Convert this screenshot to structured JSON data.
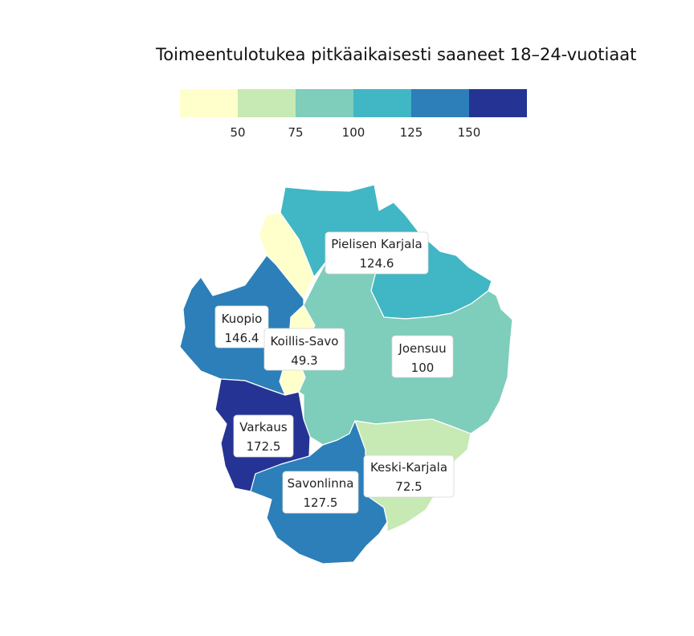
{
  "title": "Toimeentulotukea pitkäaikaisesti saaneet 18–24-vuotiaat",
  "legend": {
    "bins": [
      {
        "color": "#ffffcc"
      },
      {
        "color": "#c7e9b4"
      },
      {
        "color": "#7fcdbb"
      },
      {
        "color": "#41b6c4"
      },
      {
        "color": "#2c7fb8"
      },
      {
        "color": "#253494"
      }
    ],
    "ticks": [
      "50",
      "75",
      "100",
      "125",
      "150"
    ]
  },
  "regions": [
    {
      "id": "pielisen-karjala",
      "name": "Pielisen Karjala",
      "value": "124.6",
      "color": "#41b6c4"
    },
    {
      "id": "joensuu",
      "name": "Joensuu",
      "value": "100",
      "color": "#7fcdbb"
    },
    {
      "id": "kuopio",
      "name": "Kuopio",
      "value": "146.4",
      "color": "#2c7fb8"
    },
    {
      "id": "koillis-savo",
      "name": "Koillis-Savo",
      "value": "49.3",
      "color": "#ffffcc"
    },
    {
      "id": "varkaus",
      "name": "Varkaus",
      "value": "172.5",
      "color": "#253494"
    },
    {
      "id": "savonlinna",
      "name": "Savonlinna",
      "value": "127.5",
      "color": "#2c7fb8"
    },
    {
      "id": "keski-karjala",
      "name": "Keski-Karjala",
      "value": "72.5",
      "color": "#c7e9b4"
    }
  ]
}
